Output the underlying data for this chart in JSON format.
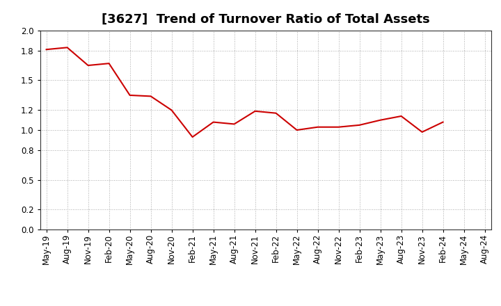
{
  "title": "[3627]  Trend of Turnover Ratio of Total Assets",
  "x_labels": [
    "May-19",
    "Aug-19",
    "Nov-19",
    "Feb-20",
    "May-20",
    "Aug-20",
    "Nov-20",
    "Feb-21",
    "May-21",
    "Aug-21",
    "Nov-21",
    "Feb-22",
    "May-22",
    "Aug-22",
    "Nov-22",
    "Feb-23",
    "May-23",
    "Aug-23",
    "Nov-23",
    "Feb-24",
    "May-24",
    "Aug-24"
  ],
  "y_values": [
    1.81,
    1.83,
    1.65,
    1.67,
    1.35,
    1.34,
    1.2,
    0.93,
    1.08,
    1.06,
    1.19,
    1.17,
    1.0,
    1.03,
    1.03,
    1.05,
    1.1,
    1.14,
    0.98,
    1.08,
    null,
    null
  ],
  "line_color": "#cc0000",
  "line_width": 1.5,
  "ylim": [
    0.0,
    2.0
  ],
  "yticks": [
    0.0,
    0.2,
    0.5,
    0.8,
    1.0,
    1.2,
    1.5,
    1.8,
    2.0
  ],
  "background_color": "#ffffff",
  "grid_color": "#aaaaaa",
  "title_fontsize": 13,
  "tick_fontsize": 8.5
}
